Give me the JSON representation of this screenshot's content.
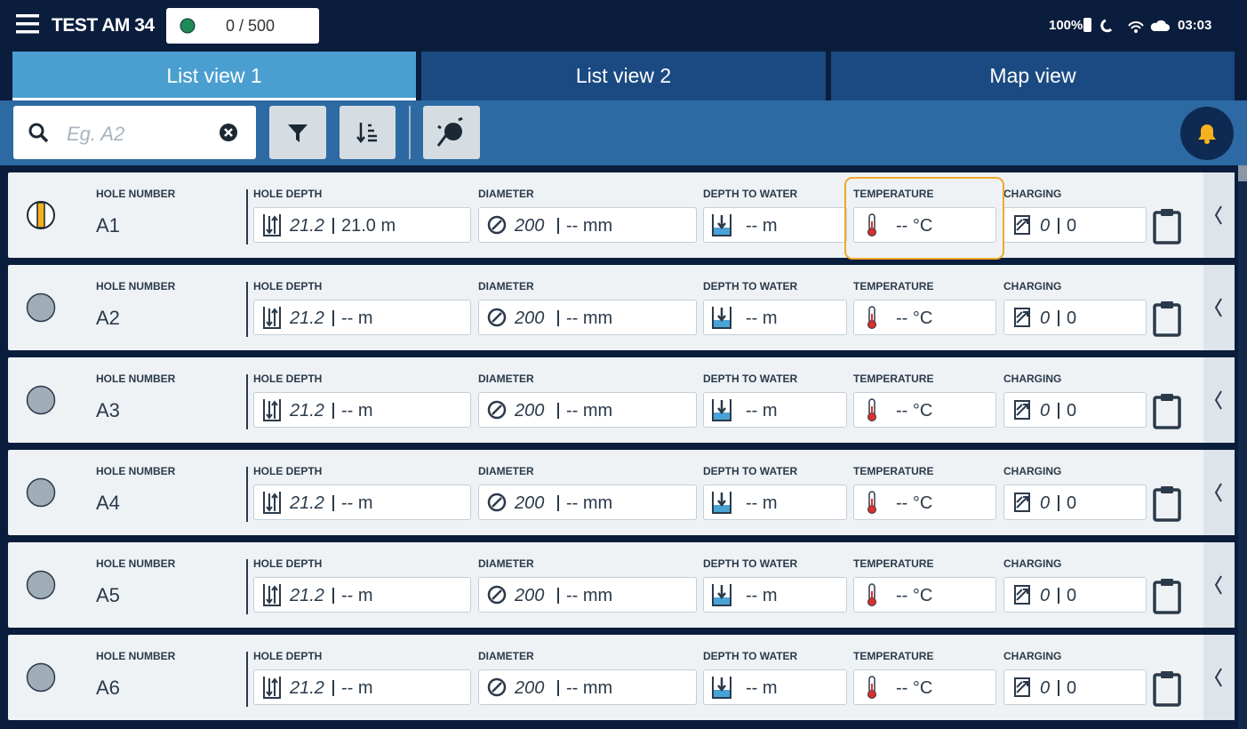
{
  "header": {
    "title": "TEST AM 34",
    "counter": "0 / 500",
    "battery": "100%",
    "time": "03:03"
  },
  "tabs": [
    "List view 1",
    "List view 2",
    "Map view"
  ],
  "search": {
    "placeholder": "Eg. A2"
  },
  "columns": [
    "HOLE NUMBER",
    "HOLE DEPTH",
    "DIAMETER",
    "DEPTH TO WATER",
    "TEMPERATURE",
    "CHARGING"
  ],
  "rows": [
    {
      "hole": "A1",
      "depth": [
        "21.2",
        "21.0 m"
      ],
      "diameter": [
        "200",
        "-- mm"
      ],
      "water": "-- m",
      "temperature": "-- °C",
      "charging": [
        "0",
        "0"
      ]
    },
    {
      "hole": "A2",
      "depth": [
        "21.2",
        "-- m"
      ],
      "diameter": [
        "200",
        "-- mm"
      ],
      "water": "-- m",
      "temperature": "-- °C",
      "charging": [
        "0",
        "0"
      ]
    },
    {
      "hole": "A3",
      "depth": [
        "21.2",
        "-- m"
      ],
      "diameter": [
        "200",
        "-- mm"
      ],
      "water": "-- m",
      "temperature": "-- °C",
      "charging": [
        "0",
        "0"
      ]
    },
    {
      "hole": "A4",
      "depth": [
        "21.2",
        "-- m"
      ],
      "diameter": [
        "200",
        "-- mm"
      ],
      "water": "-- m",
      "temperature": "-- °C",
      "charging": [
        "0",
        "0"
      ]
    },
    {
      "hole": "A5",
      "depth": [
        "21.2",
        "-- m"
      ],
      "diameter": [
        "200",
        "-- mm"
      ],
      "water": "-- m",
      "temperature": "-- °C",
      "charging": [
        "0",
        "0"
      ]
    },
    {
      "hole": "A6",
      "depth": [
        "21.2",
        "-- m"
      ],
      "diameter": [
        "200",
        "-- mm"
      ],
      "water": "-- m",
      "temperature": "-- °C",
      "charging": [
        "0",
        "0"
      ]
    }
  ]
}
